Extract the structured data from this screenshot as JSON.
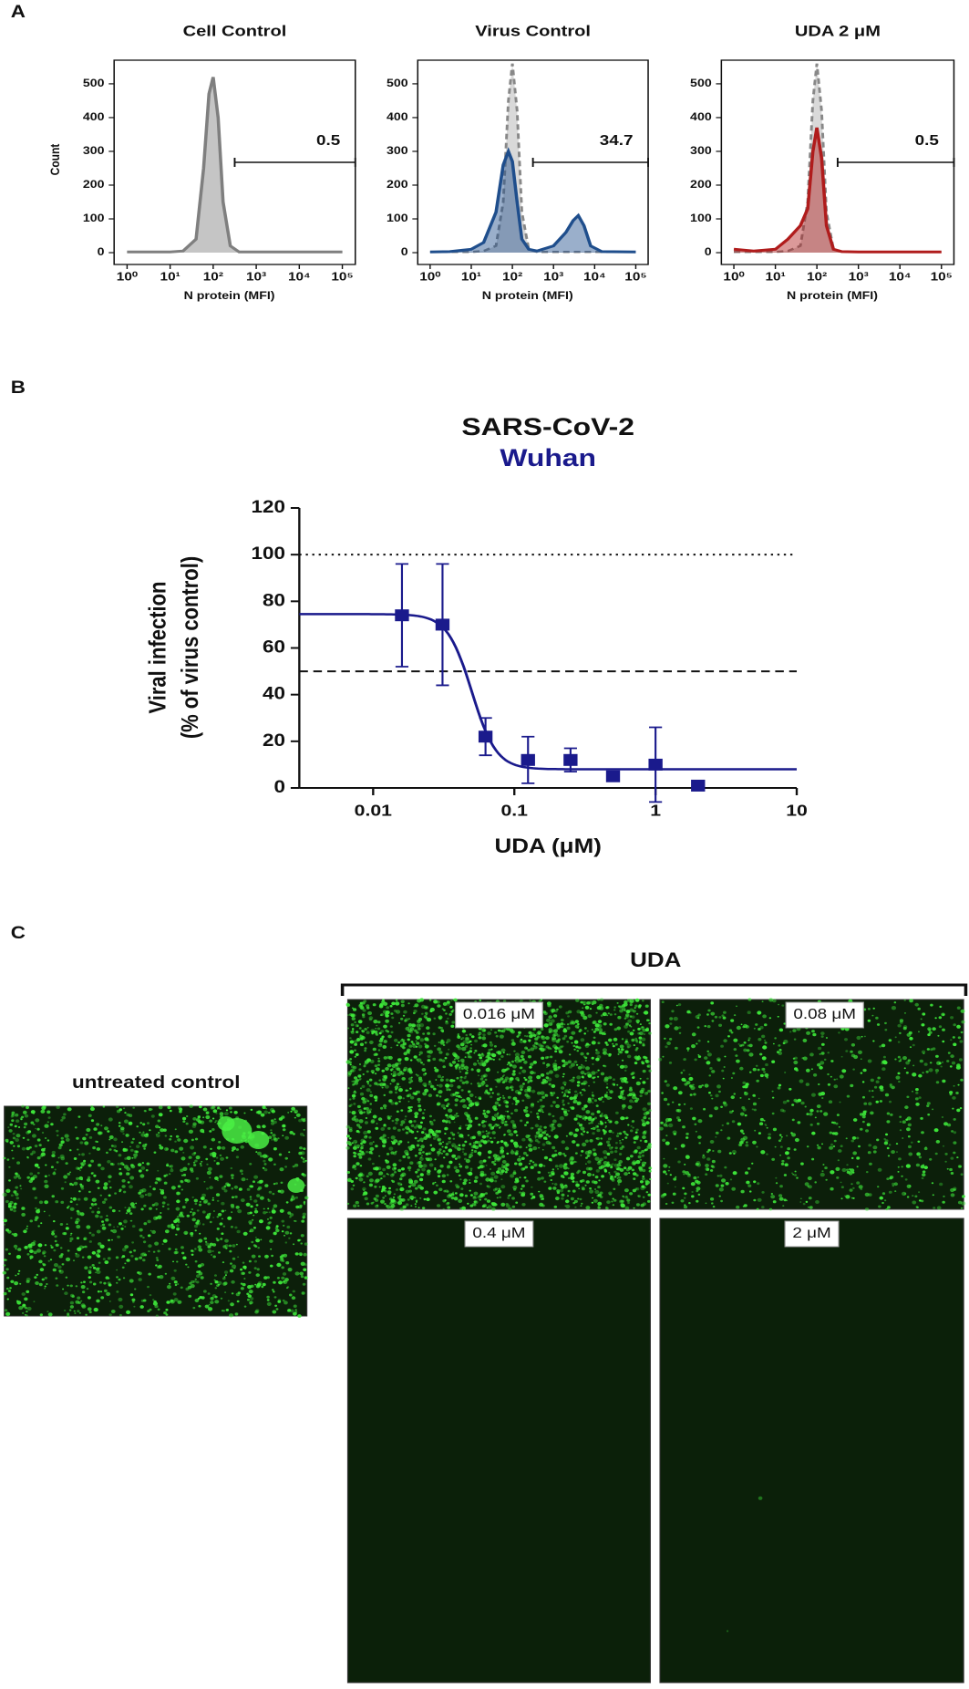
{
  "panel_labels": [
    "A",
    "B",
    "C"
  ],
  "chart_data": [
    {
      "type": "area",
      "title": "Cell Control",
      "xlabel": "N protein (MFI)",
      "ylabel": "Count",
      "xscale": "log",
      "x": [
        1,
        3,
        10,
        20,
        40,
        60,
        80,
        100,
        130,
        170,
        250,
        400,
        1000,
        2000,
        3000,
        4000,
        5500,
        8000,
        15000,
        100000
      ],
      "series": [
        {
          "color": "#7f7f7f",
          "values": [
            2,
            2,
            2,
            5,
            40,
            250,
            470,
            520,
            400,
            150,
            20,
            2,
            2,
            2,
            2,
            2,
            2,
            2,
            2,
            2
          ]
        }
      ],
      "xlim": [
        0.5,
        200000
      ],
      "ylim": [
        -35,
        570
      ],
      "xticks": [
        {
          "value": 1,
          "label": "10⁰"
        },
        {
          "value": 10,
          "label": "10¹"
        },
        {
          "value": 100,
          "label": "10²"
        },
        {
          "value": 1000,
          "label": "10³"
        },
        {
          "value": 10000,
          "label": "10⁴"
        },
        {
          "value": 100000,
          "label": "10⁵"
        }
      ],
      "yticks": [
        0,
        100,
        200,
        300,
        400,
        500
      ],
      "gate": [
        316,
        200000
      ],
      "gate_label": 0.5
    },
    {
      "type": "area",
      "title": "Virus Control",
      "xlabel": "N protein (MFI)",
      "xscale": "log",
      "x": [
        1,
        3,
        10,
        20,
        40,
        60,
        80,
        100,
        130,
        170,
        250,
        400,
        1000,
        2000,
        3000,
        4000,
        5500,
        8000,
        15000,
        100000
      ],
      "series": [
        {
          "color": "#999999",
          "line": "dashed",
          "values": [
            2,
            2,
            2,
            5,
            20,
            150,
            450,
            560,
            420,
            120,
            10,
            2,
            2,
            2,
            2,
            2,
            2,
            2,
            2,
            2
          ]
        },
        {
          "color": "#1f4e8c",
          "values": [
            2,
            3,
            10,
            30,
            120,
            260,
            300,
            270,
            150,
            40,
            10,
            5,
            20,
            60,
            95,
            110,
            80,
            20,
            3,
            2
          ]
        }
      ],
      "xlim": [
        0.5,
        200000
      ],
      "ylim": [
        -35,
        570
      ],
      "xticks": [
        {
          "value": 1,
          "label": "10⁰"
        },
        {
          "value": 10,
          "label": "10¹"
        },
        {
          "value": 100,
          "label": "10²"
        },
        {
          "value": 1000,
          "label": "10³"
        },
        {
          "value": 10000,
          "label": "10⁴"
        },
        {
          "value": 100000,
          "label": "10⁵"
        }
      ],
      "yticks": [
        0,
        100,
        200,
        300,
        400,
        500
      ],
      "gate": [
        316,
        200000
      ],
      "gate_label": 34.7
    },
    {
      "type": "area",
      "title": "UDA 2 μM",
      "xlabel": "N protein (MFI)",
      "xscale": "log",
      "x": [
        1,
        3,
        10,
        20,
        40,
        60,
        80,
        100,
        130,
        170,
        250,
        400,
        1000,
        2000,
        3000,
        4000,
        5500,
        8000,
        15000,
        100000
      ],
      "series": [
        {
          "color": "#999999",
          "line": "dashed",
          "values": [
            2,
            2,
            2,
            5,
            20,
            150,
            450,
            560,
            420,
            120,
            10,
            2,
            2,
            2,
            2,
            2,
            2,
            2,
            2,
            2
          ]
        },
        {
          "color": "#b01c1c",
          "values": [
            10,
            5,
            10,
            40,
            80,
            130,
            300,
            370,
            280,
            80,
            10,
            3,
            2,
            2,
            2,
            2,
            2,
            2,
            2,
            2
          ]
        }
      ],
      "xlim": [
        0.5,
        200000
      ],
      "ylim": [
        -35,
        570
      ],
      "xticks": [
        {
          "value": 1,
          "label": "10⁰"
        },
        {
          "value": 10,
          "label": "10¹"
        },
        {
          "value": 100,
          "label": "10²"
        },
        {
          "value": 1000,
          "label": "10³"
        },
        {
          "value": 10000,
          "label": "10⁴"
        },
        {
          "value": 100000,
          "label": "10⁵"
        }
      ],
      "yticks": [
        0,
        100,
        200,
        300,
        400,
        500
      ],
      "gate": [
        316,
        200000
      ],
      "gate_label": 0.5
    },
    {
      "type": "scatter",
      "title": "SARS-CoV-2",
      "subtitle": "Wuhan",
      "subtitle_color": "#1a1a8c",
      "xlabel": "UDA (μM)",
      "ylabel": [
        "Viral infection",
        "(% of virus control)"
      ],
      "xscale": "log",
      "x": [
        0.016,
        0.031,
        0.0625,
        0.125,
        0.25,
        0.5,
        1,
        2
      ],
      "series": [
        {
          "color": "#1a1a8c",
          "values": [
            74,
            70,
            22,
            12,
            12,
            5,
            10,
            1
          ],
          "errors": [
            22,
            26,
            8,
            10,
            5,
            0,
            16,
            0
          ]
        }
      ],
      "fit": {
        "top": 74.5,
        "bottom": 8,
        "ic50": 0.05,
        "hill": 5
      },
      "reference_lines": [
        {
          "value": 100,
          "style": "dotted"
        },
        {
          "value": 50,
          "style": "dashed"
        }
      ],
      "xlim": [
        0.003,
        10
      ],
      "ylim": [
        0,
        120
      ],
      "xticks": [
        0.01,
        0.1,
        1,
        10
      ],
      "yticks": [
        0,
        20,
        40,
        60,
        80,
        100,
        120
      ]
    }
  ],
  "panel_c": {
    "group_label": "UDA",
    "control_label": "untreated control",
    "image_labels": [
      "0.016 μM",
      "0.08 μM",
      "0.4 μM",
      "2 μM"
    ]
  }
}
